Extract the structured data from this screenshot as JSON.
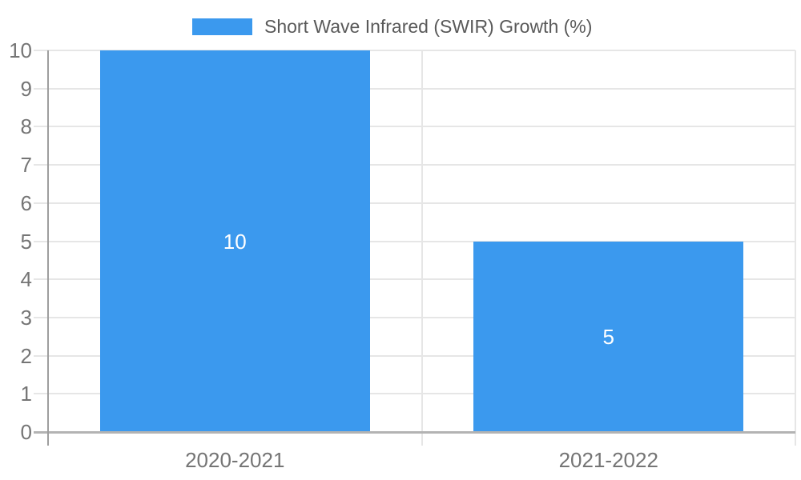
{
  "legend": {
    "label": "Short Wave Infrared (SWIR) Growth (%)"
  },
  "chart_data": {
    "type": "bar",
    "title": "",
    "xlabel": "",
    "ylabel": "",
    "categories": [
      "2020-2021",
      "2021-2022"
    ],
    "series": [
      {
        "name": "Short Wave Infrared (SWIR) Growth (%)",
        "values": [
          10,
          5
        ]
      }
    ],
    "data_labels": [
      "10",
      "5"
    ],
    "ylim": [
      0,
      10
    ],
    "y_ticks": [
      0,
      1,
      2,
      3,
      4,
      5,
      6,
      7,
      8,
      9,
      10
    ],
    "grid": true,
    "legend_position": "top",
    "colors": {
      "bar": "#3b99ee",
      "gridline": "#e6e6e6",
      "baseline": "#b3b3b3",
      "axis_line": "#9e9e9e",
      "tick_label": "#757575",
      "legend_text": "#595959",
      "data_label": "#ffffff",
      "background": "#ffffff"
    }
  }
}
